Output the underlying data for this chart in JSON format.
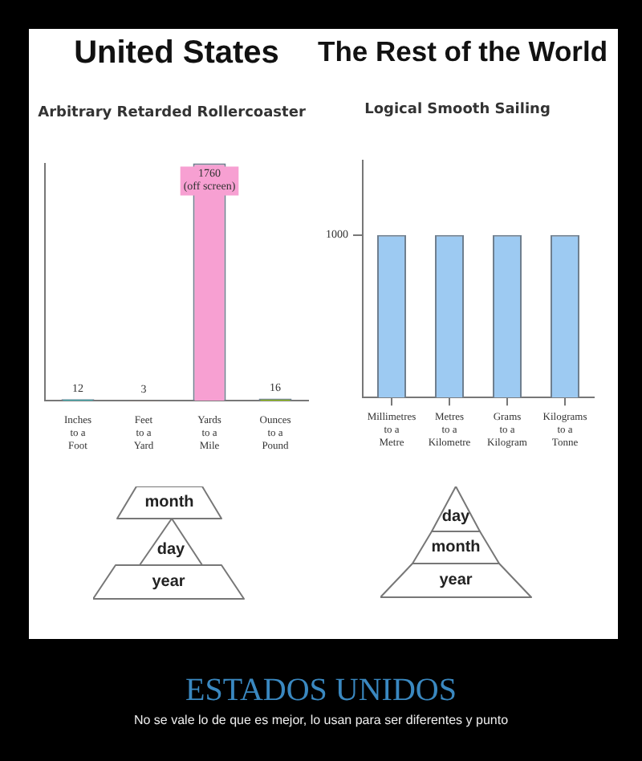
{
  "chart_data": [
    {
      "type": "bar",
      "title": "United States",
      "subtitle": "Arbitrary Retarded Rollercoaster",
      "categories": [
        "Inches to a Foot",
        "Feet to a Yard",
        "Yards to a Mile",
        "Ounces to a Pound"
      ],
      "values": [
        12,
        3,
        1760,
        16
      ],
      "colors": [
        "#33cccc",
        "#ee7733",
        "#f7a0d2",
        "#99cc11"
      ],
      "value_labels": [
        "12",
        "3",
        "1760 (off screen)",
        "16"
      ],
      "ylim": [
        0,
        1760
      ],
      "tick_labels": "x",
      "grid": false,
      "legend": false,
      "annotations": [
        "month",
        "day",
        "year"
      ]
    },
    {
      "type": "bar",
      "title": "The Rest of the World",
      "subtitle": "Logical Smooth Sailing",
      "categories": [
        "Millimetres to a Metre",
        "Metres to a Kilometre",
        "Grams to a Kilogram",
        "Kilograms to a Tonne"
      ],
      "values": [
        1000,
        1000,
        1000,
        1000
      ],
      "color": "#9dcaf2",
      "ylim": [
        0,
        1460
      ],
      "yticks": [
        1000
      ],
      "grid": false,
      "legend": false,
      "annotations": [
        "day",
        "month",
        "year",
        "ESTADOS UNIDOS",
        "No se vale lo de que es mejor, lo usan para ser diferentes y punto"
      ]
    }
  ]
}
